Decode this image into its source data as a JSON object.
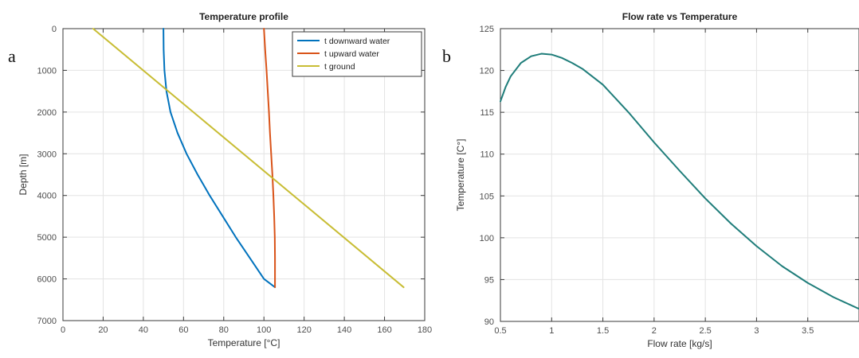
{
  "chart_data": [
    {
      "type": "line",
      "panel_label": "a",
      "title": "Temperature profile",
      "xlabel": "Temperature [°C]",
      "ylabel": "Depth [m]",
      "xlim": [
        0,
        180
      ],
      "ylim": [
        0,
        7000
      ],
      "y_reversed": true,
      "xticks": [
        0,
        20,
        40,
        60,
        80,
        100,
        120,
        140,
        160,
        180
      ],
      "yticks": [
        0,
        1000,
        2000,
        3000,
        4000,
        5000,
        6000,
        7000
      ],
      "grid": true,
      "legend_position": "top-right",
      "series": [
        {
          "name": "t downward water",
          "color": "#0072bd",
          "x": [
            50,
            50.1,
            50.5,
            51.5,
            53.5,
            57,
            61.5,
            67,
            73,
            79.5,
            86,
            93,
            100,
            105.5
          ],
          "y": [
            0,
            500,
            1000,
            1500,
            2000,
            2500,
            3000,
            3500,
            4000,
            4500,
            5000,
            5500,
            6000,
            6200
          ]
        },
        {
          "name": "t upward water",
          "color": "#d95319",
          "x": [
            100,
            100.6,
            101.3,
            101.9,
            102.5,
            103,
            103.6,
            104.2,
            104.7,
            105.1,
            105.4,
            105.5,
            105.5
          ],
          "y": [
            0,
            500,
            1000,
            1500,
            2000,
            2500,
            3000,
            3500,
            4000,
            4500,
            5000,
            5500,
            6200
          ]
        },
        {
          "name": "t ground",
          "color": "#c8bd34",
          "x": [
            15,
            169.5
          ],
          "y": [
            0,
            6200
          ]
        }
      ]
    },
    {
      "type": "line",
      "panel_label": "b",
      "title": "Flow rate vs Temperature",
      "xlabel": "Flow rate [kg/s]",
      "ylabel": "Temperature [C°]",
      "xlim": [
        0.5,
        4
      ],
      "ylim": [
        90,
        125
      ],
      "xticks": [
        0.5,
        1,
        1.5,
        2,
        2.5,
        3,
        3.5
      ],
      "yticks": [
        90,
        95,
        100,
        105,
        110,
        115,
        120,
        125
      ],
      "grid": true,
      "series": [
        {
          "color": "#1f7d7a",
          "x": [
            0.5,
            0.55,
            0.6,
            0.7,
            0.8,
            0.9,
            1.0,
            1.1,
            1.2,
            1.3,
            1.5,
            1.75,
            2.0,
            2.25,
            2.5,
            2.75,
            3.0,
            3.25,
            3.5,
            3.75,
            4.0
          ],
          "y": [
            116.3,
            118.0,
            119.3,
            120.9,
            121.7,
            122.0,
            121.9,
            121.5,
            120.9,
            120.2,
            118.3,
            115.0,
            111.4,
            108.0,
            104.7,
            101.7,
            99.0,
            96.6,
            94.6,
            92.9,
            91.5
          ]
        }
      ]
    }
  ]
}
